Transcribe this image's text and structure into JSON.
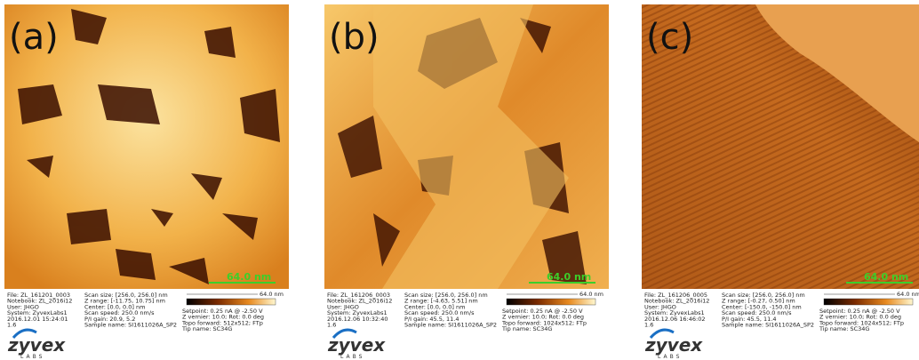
{
  "panels": [
    {
      "label": "(a)",
      "scale_bar": "64.0 nm",
      "colorbar_label": "64.0 nm",
      "col1": [
        "File: ZL_161201_0003",
        "Notebook: ZL_2016i12",
        "User: JHGO",
        "System: ZyvexLabs1",
        "2016.12.01 15:24:01",
        "1.6"
      ],
      "col2": [
        "Scan size: [256.0, 256.0] nm",
        "Z range: [-11.75, 10.75] nm",
        "Center: [0.0, 0.0] nm",
        "Scan speed: 250.0 nm/s",
        "P/I gain: 20.9, 5.2",
        "Sample name: SI1611026A_SP2"
      ],
      "col3": [
        "Setpoint: 0.25 nA @ -2.50 V",
        "Z vernier: 10.0; Rot: 0.0 deg",
        "Topo forward: 512x512; FTp",
        "Tip name: SC34G"
      ],
      "logo": "zyvex",
      "logo_sub": "LABS"
    },
    {
      "label": "(b)",
      "scale_bar": "64.0 nm",
      "colorbar_label": "64.0 nm",
      "col1": [
        "File: ZL_161206_0003",
        "Notebook: ZL_2016i12",
        "User: JHGO",
        "System: ZyvexLabs1",
        "2016.12.06 10:32:40",
        "1.6"
      ],
      "col2": [
        "Scan size: [256.0, 256.0] nm",
        "Z range: [-4.63, 5.51] nm",
        "Center: [0.0, 0.0] nm",
        "Scan speed: 250.0 nm/s",
        "P/I gain: 45.5, 11.4",
        "Sample name: SI1611026A_SP2"
      ],
      "col3": [
        "Setpoint: 0.25 nA @ -2.50 V",
        "Z vernier: 10.0; Rot: 0.0 deg",
        "Topo forward: 1024x512; FTp",
        "Tip name: SC34G"
      ],
      "logo": "zyvex",
      "logo_sub": "LABS"
    },
    {
      "label": "(c)",
      "scale_bar": "64.0 nm",
      "colorbar_label": "64.0 nm",
      "col1": [
        "File: ZL_161206_0005",
        "Notebook: ZL_2016i12",
        "User: JHGO",
        "System: ZyvexLabs1",
        "2016.12.06 16:46:02",
        "1.6"
      ],
      "col2": [
        "Scan size: [256.0, 256.0] nm",
        "Z range: [-0.27, 0.50] nm",
        "Center: [-150.0, -150.0] nm",
        "Scan speed: 250.0 nm/s",
        "P/I gain: 45.5, 11.4",
        "Sample name: SI1611026A_SP2"
      ],
      "col3": [
        "Setpoint: 0.25 nA @ -2.50 V",
        "Z vernier: 10.0; Rot: 0.0 deg",
        "Topo forward: 1024x512; FTp",
        "Tip name: SC34G"
      ],
      "logo": "zyvex",
      "logo_sub": "LABS"
    }
  ]
}
